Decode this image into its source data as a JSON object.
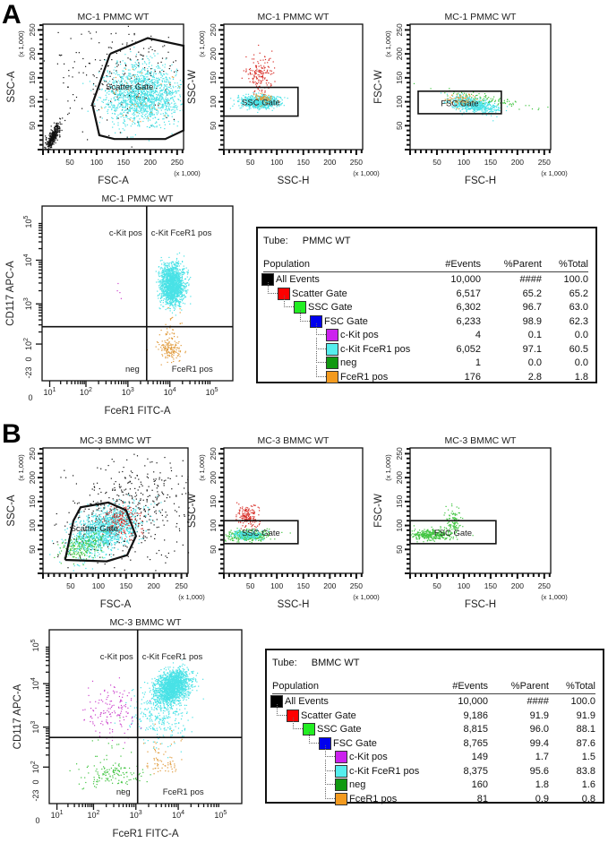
{
  "panels": [
    {
      "label": "A"
    },
    {
      "label": "B"
    }
  ],
  "chart_data": [
    {
      "type": "scatter",
      "panel": "A",
      "title": "MC-1 PMMC WT",
      "xlabel": "FSC-A",
      "ylabel": "SSC-A",
      "xunit": "(x 1,000)",
      "yunit": "(x 1,000)",
      "xlim": [
        0,
        262
      ],
      "ylim": [
        0,
        262
      ],
      "ticks": [
        "50",
        "100",
        "150",
        "200",
        "250"
      ],
      "gate": {
        "label": "Scatter Gate",
        "shape": "polygon",
        "points": [
          [
            125,
            200
          ],
          [
            195,
            233
          ],
          [
            262,
            217
          ],
          [
            262,
            40
          ],
          [
            228,
            22
          ],
          [
            133,
            22
          ],
          [
            105,
            30
          ],
          [
            92,
            95
          ],
          [
            125,
            200
          ]
        ]
      }
    },
    {
      "type": "scatter",
      "panel": "A",
      "title": "MC-1 PMMC WT",
      "xlabel": "SSC-H",
      "ylabel": "SSC-W",
      "xunit": "(x 1,000)",
      "yunit": "(x 1,000)",
      "xlim": [
        0,
        262
      ],
      "ylim": [
        0,
        262
      ],
      "ticks": [
        "50",
        "100",
        "150",
        "200",
        "250"
      ],
      "gate": {
        "label": "SSC Gate",
        "shape": "rect",
        "points": [
          [
            0,
            70
          ],
          [
            140,
            130
          ]
        ]
      }
    },
    {
      "type": "scatter",
      "panel": "A",
      "title": "MC-1 PMMC WT",
      "xlabel": "FSC-H",
      "ylabel": "FSC-W",
      "xunit": "(x 1,000)",
      "yunit": "(x 1,000)",
      "xlim": [
        0,
        262
      ],
      "ylim": [
        0,
        262
      ],
      "ticks": [
        "50",
        "100",
        "150",
        "200",
        "250"
      ],
      "gate": {
        "label": "FSC Gate",
        "shape": "rect",
        "points": [
          [
            15,
            75
          ],
          [
            170,
            122
          ]
        ]
      }
    },
    {
      "type": "scatter",
      "panel": "A",
      "scale": "log",
      "title": "MC-1 PMMC WT",
      "xlabel": "FceR1 FITC-A",
      "ylabel": "CD117 APC-A",
      "xticks": [
        {
          "base": "0",
          "exp": ""
        },
        {
          "base": "10",
          "exp": "1"
        },
        {
          "base": "10",
          "exp": "2"
        },
        {
          "base": "10",
          "exp": "3"
        },
        {
          "base": "10",
          "exp": "4"
        },
        {
          "base": "10",
          "exp": "5"
        }
      ],
      "yticks": [
        {
          "base": "-23",
          "exp": ""
        },
        {
          "base": "0",
          "exp": ""
        },
        {
          "base": "10",
          "exp": "2"
        },
        {
          "base": "10",
          "exp": "3"
        },
        {
          "base": "10",
          "exp": "4"
        },
        {
          "base": "10",
          "exp": "5"
        }
      ],
      "quadrant_threshold": {
        "x": 2800,
        "y": 270
      },
      "quadrants": {
        "top_left": "c-Kit pos",
        "top_right": "c-Kit FceR1 pos",
        "bottom_left": "neg",
        "bottom_right": "FceR1 pos"
      }
    },
    {
      "type": "table",
      "panel": "A",
      "tube_label": "Tube:",
      "tube": "PMMC WT",
      "headers": [
        "Population",
        "#Events",
        "%Parent",
        "%Total"
      ],
      "rows": [
        {
          "name": "All Events",
          "color": "#000000",
          "level": 0,
          "events": "10,000",
          "parent": "####",
          "total": "100.0"
        },
        {
          "name": "Scatter Gate",
          "color": "#ff0000",
          "level": 1,
          "events": "6,517",
          "parent": "65.2",
          "total": "65.2"
        },
        {
          "name": "SSC Gate",
          "color": "#22ee22",
          "level": 2,
          "events": "6,302",
          "parent": "96.7",
          "total": "63.0"
        },
        {
          "name": "FSC Gate",
          "color": "#0000ee",
          "level": 3,
          "events": "6,233",
          "parent": "98.9",
          "total": "62.3"
        },
        {
          "name": "c-Kit pos",
          "color": "#cc22ee",
          "level": 4,
          "events": "4",
          "parent": "0.1",
          "total": "0.0"
        },
        {
          "name": "c-Kit FceR1 pos",
          "color": "#55eeee",
          "level": 4,
          "events": "6,052",
          "parent": "97.1",
          "total": "60.5"
        },
        {
          "name": "neg",
          "color": "#119911",
          "level": 4,
          "events": "1",
          "parent": "0.0",
          "total": "0.0"
        },
        {
          "name": "FceR1 pos",
          "color": "#f39a1e",
          "level": 4,
          "events": "176",
          "parent": "2.8",
          "total": "1.8"
        }
      ]
    },
    {
      "type": "scatter",
      "panel": "B",
      "title": "MC-3 BMMC WT",
      "xlabel": "FSC-A",
      "ylabel": "SSC-A",
      "xunit": "(x 1,000)",
      "yunit": "(x 1,000)",
      "xlim": [
        0,
        262
      ],
      "ylim": [
        0,
        262
      ],
      "ticks": [
        "50",
        "100",
        "150",
        "200",
        "250"
      ],
      "gate": {
        "label": "Scatter Gate",
        "shape": "polygon",
        "points": [
          [
            40,
            28
          ],
          [
            55,
            110
          ],
          [
            68,
            138
          ],
          [
            118,
            148
          ],
          [
            150,
            132
          ],
          [
            168,
            78
          ],
          [
            152,
            38
          ],
          [
            115,
            25
          ],
          [
            40,
            28
          ]
        ]
      }
    },
    {
      "type": "scatter",
      "panel": "B",
      "title": "MC-3 BMMC WT",
      "xlabel": "SSC-H",
      "ylabel": "SSC-W",
      "xunit": "(x 1,000)",
      "yunit": "(x 1,000)",
      "xlim": [
        0,
        262
      ],
      "ylim": [
        0,
        262
      ],
      "ticks": [
        "50",
        "100",
        "150",
        "200",
        "250"
      ],
      "gate": {
        "label": "SSC Gate",
        "shape": "rect",
        "points": [
          [
            0,
            62
          ],
          [
            140,
            110
          ]
        ]
      }
    },
    {
      "type": "scatter",
      "panel": "B",
      "title": "MC-3 BMMC WT",
      "xlabel": "FSC-H",
      "ylabel": "FSC-W",
      "xunit": "(x 1,000)",
      "yunit": "(x 1,000)",
      "xlim": [
        0,
        262
      ],
      "ylim": [
        0,
        262
      ],
      "ticks": [
        "50",
        "100",
        "150",
        "200",
        "250"
      ],
      "gate": {
        "label": "FSC Gate",
        "shape": "rect",
        "points": [
          [
            0,
            62
          ],
          [
            160,
            110
          ]
        ]
      }
    },
    {
      "type": "scatter",
      "panel": "B",
      "scale": "log",
      "title": "MC-3 BMMC WT",
      "xlabel": "FceR1 FITC-A",
      "ylabel": "CD117 APC-A",
      "xticks": [
        {
          "base": "0",
          "exp": ""
        },
        {
          "base": "10",
          "exp": "1"
        },
        {
          "base": "10",
          "exp": "2"
        },
        {
          "base": "10",
          "exp": "3"
        },
        {
          "base": "10",
          "exp": "4"
        },
        {
          "base": "10",
          "exp": "5"
        }
      ],
      "yticks": [
        {
          "base": "-23",
          "exp": ""
        },
        {
          "base": "0",
          "exp": ""
        },
        {
          "base": "10",
          "exp": "2"
        },
        {
          "base": "10",
          "exp": "3"
        },
        {
          "base": "10",
          "exp": "4"
        },
        {
          "base": "10",
          "exp": "5"
        }
      ],
      "quadrant_threshold": {
        "x": 1100,
        "y": 550
      },
      "quadrants": {
        "top_left": "c-Kit pos",
        "top_right": "c-Kit FceR1 pos",
        "bottom_left": "neg",
        "bottom_right": "FceR1 pos"
      }
    },
    {
      "type": "table",
      "panel": "B",
      "tube_label": "Tube:",
      "tube": "BMMC WT",
      "headers": [
        "Population",
        "#Events",
        "%Parent",
        "%Total"
      ],
      "rows": [
        {
          "name": "All Events",
          "color": "#000000",
          "level": 0,
          "events": "10,000",
          "parent": "####",
          "total": "100.0"
        },
        {
          "name": "Scatter Gate",
          "color": "#ff0000",
          "level": 1,
          "events": "9,186",
          "parent": "91.9",
          "total": "91.9"
        },
        {
          "name": "SSC Gate",
          "color": "#22ee22",
          "level": 2,
          "events": "8,815",
          "parent": "96.0",
          "total": "88.1"
        },
        {
          "name": "FSC Gate",
          "color": "#0000ee",
          "level": 3,
          "events": "8,765",
          "parent": "99.4",
          "total": "87.6"
        },
        {
          "name": "c-Kit pos",
          "color": "#cc22ee",
          "level": 4,
          "events": "149",
          "parent": "1.7",
          "total": "1.5"
        },
        {
          "name": "c-Kit FceR1 pos",
          "color": "#55eeee",
          "level": 4,
          "events": "8,375",
          "parent": "95.6",
          "total": "83.8"
        },
        {
          "name": "neg",
          "color": "#119911",
          "level": 4,
          "events": "160",
          "parent": "1.8",
          "total": "1.6"
        },
        {
          "name": "FceR1 pos",
          "color": "#f39a1e",
          "level": 4,
          "events": "81",
          "parent": "0.9",
          "total": "0.8"
        }
      ]
    }
  ]
}
